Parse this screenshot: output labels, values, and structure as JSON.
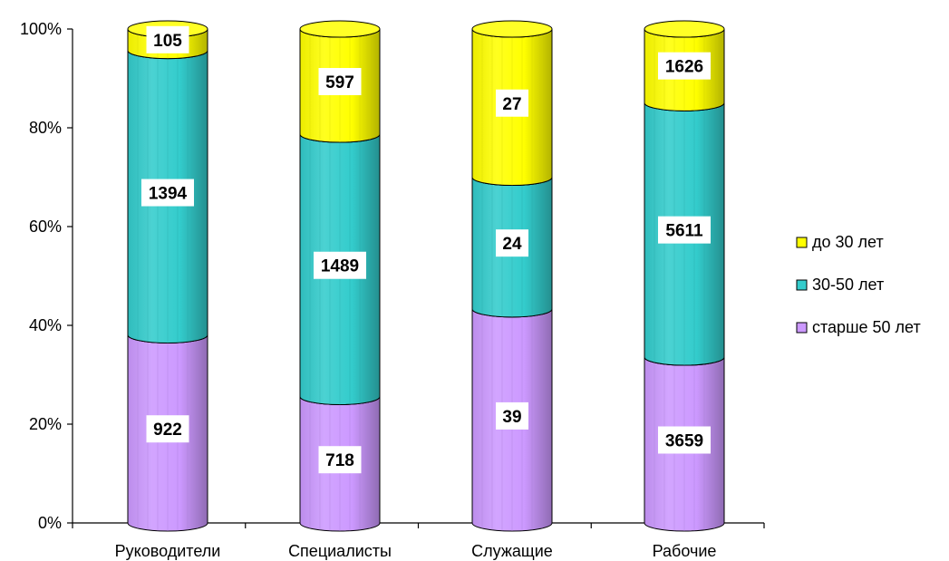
{
  "chart_data": {
    "type": "bar",
    "stacked": "percent",
    "style": "3d-cylinder",
    "categories": [
      "Руководители",
      "Специалисты",
      "Служащие",
      "Рабочие"
    ],
    "series": [
      {
        "name": "старше 50 лет",
        "values": [
          922,
          718,
          39,
          3659
        ],
        "color": "#cc99ff"
      },
      {
        "name": "30-50 лет",
        "values": [
          1394,
          1489,
          24,
          5611
        ],
        "color": "#33cccc"
      },
      {
        "name": "до 30 лет",
        "values": [
          105,
          597,
          27,
          1626
        ],
        "color": "#ffff00"
      }
    ],
    "y_ticks": [
      "0%",
      "20%",
      "40%",
      "60%",
      "80%",
      "100%"
    ],
    "ylim": [
      0,
      100
    ],
    "legend": {
      "placement": "right",
      "entries": [
        "до 30 лет",
        "30-50 лет",
        "старше 50 лет"
      ]
    },
    "grid": false
  }
}
